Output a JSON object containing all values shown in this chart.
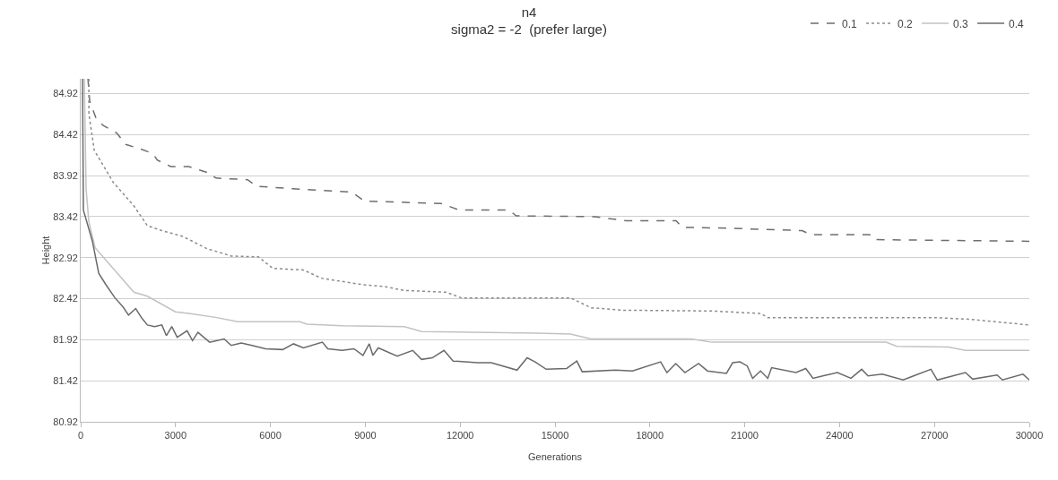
{
  "chart_data": {
    "type": "line",
    "title": "n4",
    "subtitle": "sigma2 = -2  (prefer large)",
    "xlabel": "Generations",
    "ylabel": "Height",
    "xlim": [
      0,
      30000
    ],
    "xticks": [
      0,
      3000,
      6000,
      9000,
      12000,
      15000,
      18000,
      21000,
      24000,
      27000,
      30000
    ],
    "ylim": [
      80.92,
      85.1
    ],
    "yticks": [
      80.92,
      81.42,
      81.92,
      82.42,
      82.92,
      83.42,
      83.92,
      84.42,
      84.92
    ],
    "grid": "y",
    "legend": "top right",
    "marker": "none",
    "series": [
      {
        "name": "0.1",
        "color": "#6e6e6e",
        "line_style": "dashed",
        "x": [
          230,
          285,
          485,
          713,
          1140,
          1425,
          1850,
          2280,
          2420,
          2850,
          3420,
          3990,
          4280,
          5280,
          5560,
          6700,
          8560,
          8980,
          11400,
          11980,
          13550,
          13770,
          16260,
          17250,
          18830,
          19020,
          20390,
          22810,
          23100,
          24950,
          25100,
          30000
        ],
        "values": [
          85.1,
          84.83,
          84.62,
          84.53,
          84.44,
          84.3,
          84.25,
          84.19,
          84.11,
          84.03,
          84.03,
          83.96,
          83.89,
          83.87,
          83.79,
          83.76,
          83.72,
          83.61,
          83.58,
          83.5,
          83.5,
          83.43,
          83.42,
          83.37,
          83.37,
          83.29,
          83.28,
          83.25,
          83.2,
          83.2,
          83.14,
          83.12
        ]
      },
      {
        "name": "0.2",
        "color": "#8c8c8c",
        "line_style": "dotted",
        "x": [
          257,
          260,
          428,
          1027,
          1683,
          2110,
          2567,
          3223,
          3993,
          4763,
          5618,
          6075,
          7044,
          7615,
          8271,
          8927,
          9583,
          10240,
          11550,
          12040,
          15490,
          16140,
          17110,
          19960,
          21500,
          21730,
          26980,
          28090,
          29180,
          30000
        ],
        "values": [
          85.1,
          84.67,
          84.23,
          83.84,
          83.55,
          83.31,
          83.25,
          83.18,
          83.03,
          82.94,
          82.93,
          82.79,
          82.77,
          82.67,
          82.63,
          82.59,
          82.57,
          82.52,
          82.5,
          82.43,
          82.43,
          82.31,
          82.28,
          82.27,
          82.24,
          82.19,
          82.19,
          82.17,
          82.13,
          82.1
        ]
      },
      {
        "name": "0.3",
        "color": "#c2c2c2",
        "line_style": "solid",
        "x": [
          114,
          171,
          257,
          456,
          1027,
          1683,
          2110,
          2995,
          3423,
          4307,
          4963,
          6930,
          7159,
          8271,
          10240,
          10780,
          14400,
          15490,
          16140,
          19310,
          19960,
          25470,
          25810,
          27440,
          27980,
          30000
        ],
        "values": [
          85.1,
          83.76,
          83.36,
          83.04,
          82.79,
          82.5,
          82.45,
          82.26,
          82.24,
          82.19,
          82.14,
          82.14,
          82.11,
          82.09,
          82.08,
          82.02,
          82.0,
          81.99,
          81.93,
          81.93,
          81.89,
          81.89,
          81.84,
          81.83,
          81.79,
          81.79
        ]
      },
      {
        "name": "0.4",
        "color": "#6a6a6a",
        "line_style": "solid",
        "x": [
          57,
          86,
          371,
          570,
          799,
          1084,
          1340,
          1512,
          1740,
          1939,
          2110,
          2339,
          2567,
          2709,
          2881,
          3052,
          3365,
          3536,
          3708,
          4078,
          4535,
          4763,
          5077,
          5419,
          5847,
          6388,
          6731,
          7044,
          7643,
          7815,
          8271,
          8642,
          8927,
          9126,
          9240,
          9412,
          10010,
          10500,
          10780,
          11120,
          11490,
          11780,
          12550,
          12980,
          13800,
          14120,
          14370,
          14720,
          15370,
          15690,
          15860,
          16910,
          17450,
          18340,
          18540,
          18820,
          19110,
          19540,
          19820,
          20420,
          20620,
          20850,
          21080,
          21250,
          21500,
          21730,
          21850,
          22620,
          22930,
          23160,
          23470,
          23930,
          24360,
          24700,
          24900,
          25350,
          26010,
          26890,
          27090,
          27980,
          28210,
          28980,
          29150,
          29800,
          30000
        ],
        "values": [
          85.1,
          83.5,
          83.12,
          82.73,
          82.59,
          82.43,
          82.32,
          82.22,
          82.3,
          82.18,
          82.1,
          82.08,
          82.1,
          81.97,
          82.08,
          81.95,
          82.03,
          81.91,
          82.01,
          81.89,
          81.93,
          81.85,
          81.88,
          81.85,
          81.81,
          81.8,
          81.87,
          81.82,
          81.89,
          81.81,
          81.79,
          81.81,
          81.73,
          81.87,
          81.73,
          81.82,
          81.72,
          81.79,
          81.68,
          81.7,
          81.79,
          81.66,
          81.64,
          81.64,
          81.55,
          81.7,
          81.65,
          81.56,
          81.57,
          81.66,
          81.53,
          81.55,
          81.54,
          81.65,
          81.52,
          81.63,
          81.52,
          81.63,
          81.54,
          81.51,
          81.64,
          81.65,
          81.6,
          81.45,
          81.54,
          81.45,
          81.58,
          81.52,
          81.57,
          81.45,
          81.48,
          81.52,
          81.45,
          81.56,
          81.48,
          81.5,
          81.43,
          81.56,
          81.43,
          81.52,
          81.44,
          81.49,
          81.43,
          81.5,
          81.43
        ]
      }
    ]
  }
}
